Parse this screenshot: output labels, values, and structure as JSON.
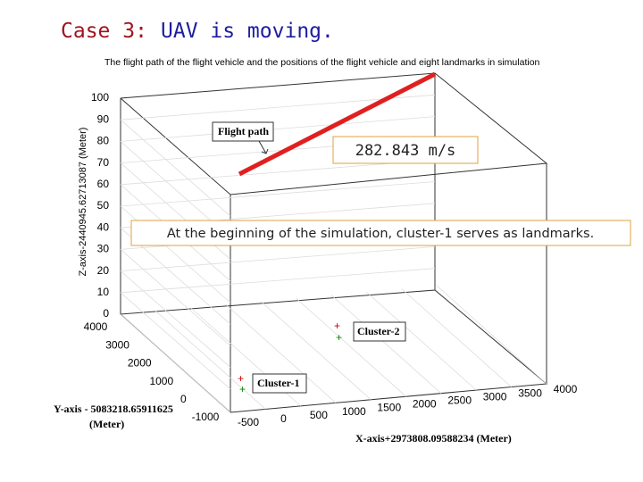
{
  "slide": {
    "title_prefix": "Case 3:",
    "title_rest": "UAV is moving.",
    "speed": "282.843 m/s",
    "note": "At the beginning of the simulation, cluster-1 serves as landmarks."
  },
  "plot": {
    "title": "The flight path of the flight vehicle and the positions of the flight vehicle and eight landmarks in simulation",
    "z_label": "Z-axis-2440945.62713087 (Meter)",
    "y_label_1": "Y-axis - 5083218.65911625",
    "y_label_2": "(Meter)",
    "x_label": "X-axis+2973808.09588234 (Meter)",
    "z_ticks": [
      100,
      90,
      80,
      70,
      60,
      50,
      40,
      30,
      20,
      10,
      0
    ],
    "y_ticks": [
      4000,
      3000,
      2000,
      1000,
      0,
      -1000
    ],
    "x_ticks": [
      -500,
      0,
      500,
      1000,
      1500,
      2000,
      2500,
      3000,
      3500,
      4000
    ],
    "flight_path_label": "Flight path",
    "cluster1_label": "Cluster-1",
    "cluster2_label": "Cluster-2"
  }
}
